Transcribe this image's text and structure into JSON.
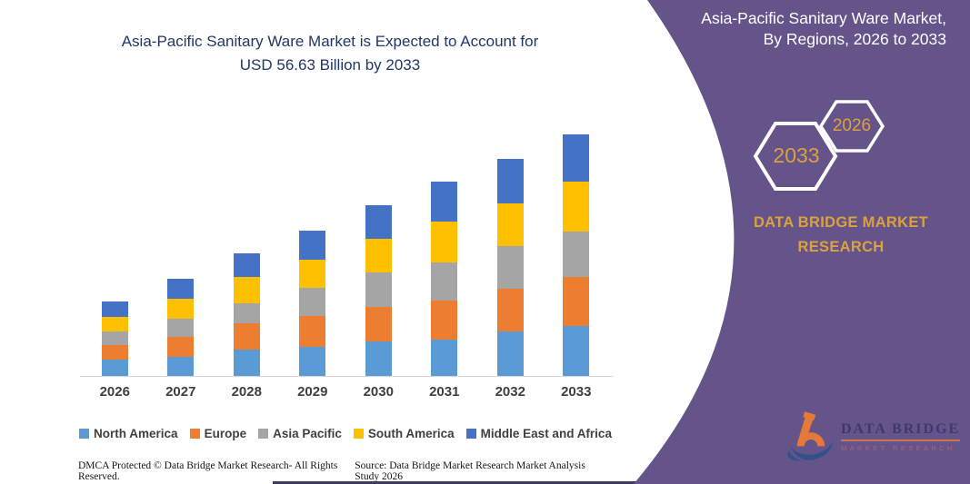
{
  "page": {
    "chart_panel": {
      "title_line1": "Asia-Pacific Sanitary Ware Market is Expected to Account for",
      "title_line2": "USD 56.63 Billion by 2033",
      "footer_left": "DMCA Protected © Data Bridge Market Research-  All Rights Reserved.",
      "footer_right": "Source: Data Bridge Market Research  Market Analysis Study 2026"
    },
    "brand_panel": {
      "heading_line1": "Asia-Pacific Sanitary Ware Market,",
      "heading_line2": "By Regions, 2026 to 2033",
      "hexagon_years": {
        "back": "2033",
        "front": "2026"
      },
      "brand_line1": "DATA BRIDGE MARKET",
      "brand_line2": "RESEARCH",
      "logo_name": "DATA BRIDGE",
      "logo_tagline": "MARKET RESEARCH",
      "colors": {
        "background": "#65548A",
        "gold": "#DBA13E",
        "heading_text": "#FFFFFF"
      }
    }
  },
  "chart_data": {
    "type": "bar",
    "stacked": true,
    "title": "Asia-Pacific Sanitary Ware Market is Expected to Account for USD 56.63 Billion by 2033",
    "unit": "USD Billion",
    "categories": [
      "2026",
      "2027",
      "2028",
      "2029",
      "2030",
      "2031",
      "2032",
      "2033"
    ],
    "series": [
      {
        "name": "North America",
        "color": "#5B9BD5",
        "values": [
          3.9,
          4.4,
          6.2,
          6.9,
          8.1,
          8.6,
          10.4,
          11.8
        ]
      },
      {
        "name": "Europe",
        "color": "#ED7D31",
        "values": [
          3.3,
          4.7,
          6.2,
          7.2,
          8.1,
          9.1,
          10.1,
          11.4
        ]
      },
      {
        "name": "Asia Pacific",
        "color": "#A5A5A5",
        "values": [
          3.2,
          4.4,
          4.6,
          6.5,
          8.0,
          8.9,
          10.0,
          10.7
        ]
      },
      {
        "name": "South America",
        "color": "#FFC000",
        "values": [
          3.4,
          4.6,
          6.2,
          6.6,
          7.9,
          9.7,
          10.0,
          11.6
        ]
      },
      {
        "name": "Middle East and Africa",
        "color": "#4472C4",
        "values": [
          3.6,
          4.7,
          5.6,
          6.9,
          7.9,
          9.2,
          10.4,
          11.13
        ]
      }
    ],
    "totals": [
      17.4,
      22.8,
      28.8,
      34.1,
      40.0,
      45.5,
      50.9,
      56.63
    ],
    "ylim": [
      0,
      60
    ],
    "grid": false,
    "y_axis_visible": false,
    "legend_position": "bottom",
    "stack_order": "bottom_to_top"
  }
}
